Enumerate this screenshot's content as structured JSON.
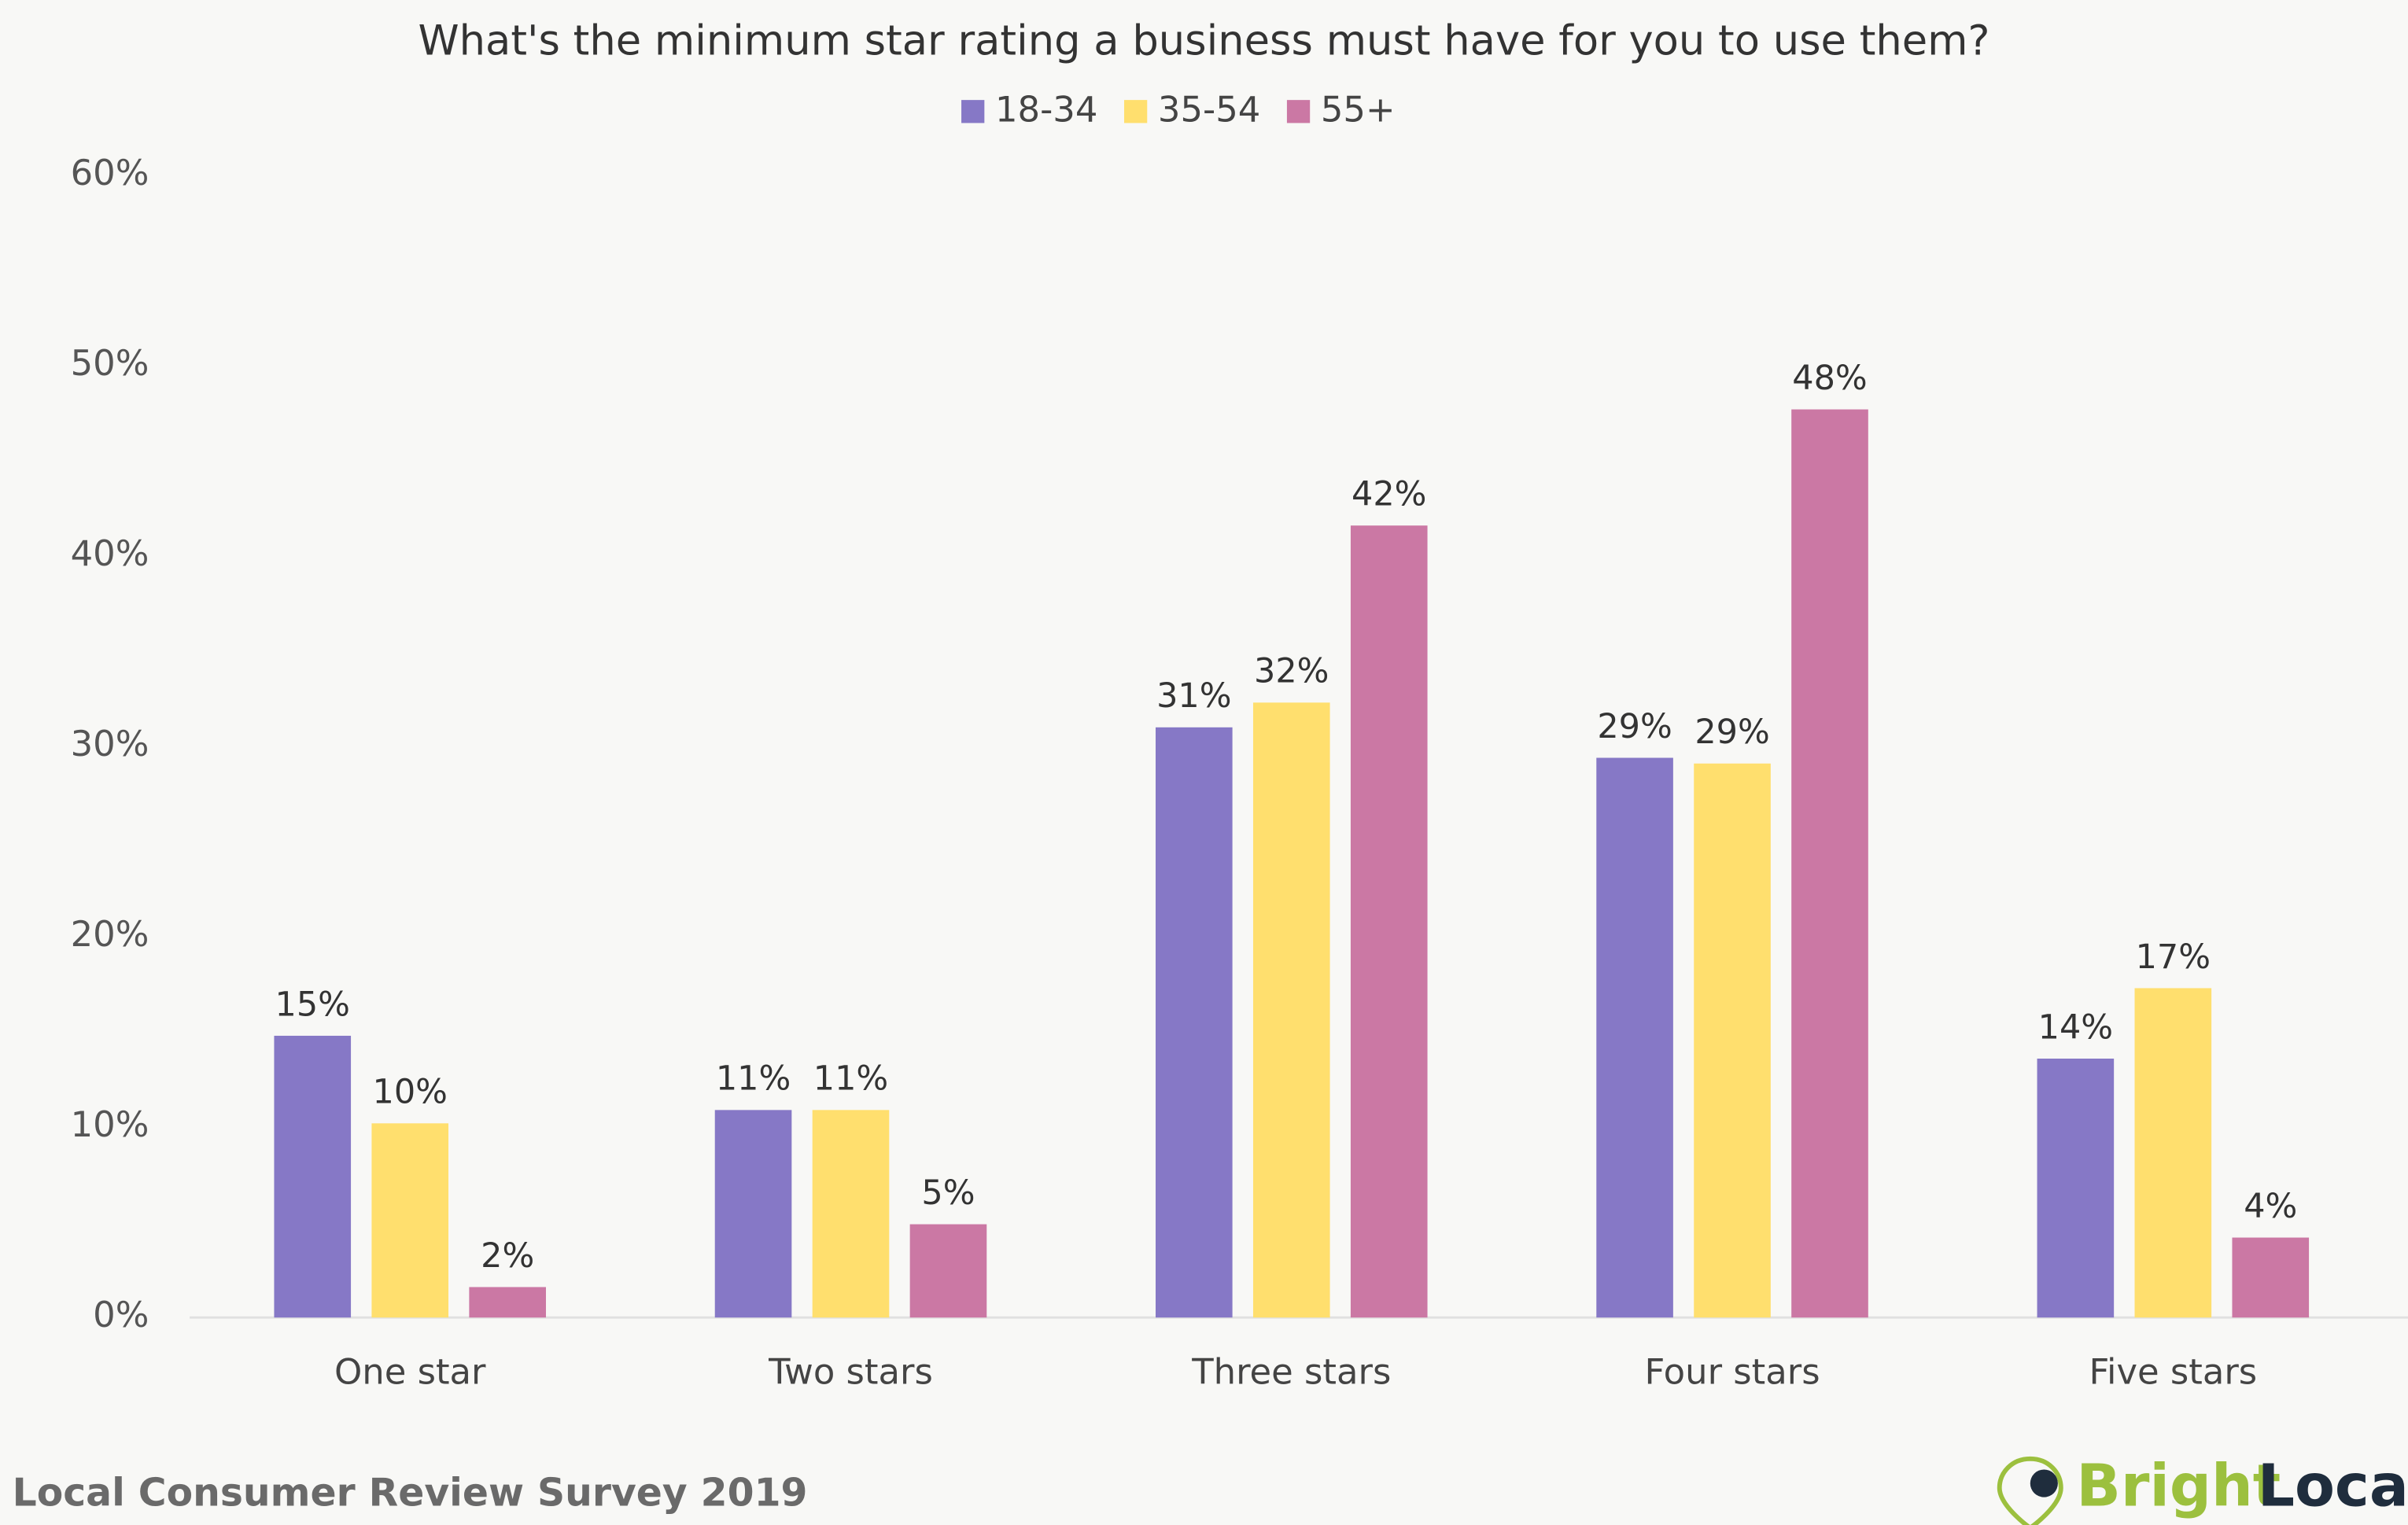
{
  "chart_data": {
    "type": "bar",
    "title": "What's the minimum star rating a business must have for you to use them?",
    "categories": [
      "One star",
      "Two stars",
      "Three stars",
      "Four stars",
      "Five stars"
    ],
    "series": [
      {
        "name": "18-34",
        "color": "#8678c6",
        "values": [
          14.8,
          10.9,
          31.0,
          29.4,
          13.6
        ],
        "value_labels": [
          "15%",
          "11%",
          "31%",
          "29%",
          "14%"
        ]
      },
      {
        "name": "35-54",
        "color": "#ffdf6e",
        "values": [
          10.2,
          10.9,
          32.3,
          29.1,
          17.3
        ],
        "value_labels": [
          "10%",
          "11%",
          "32%",
          "29%",
          "17%"
        ]
      },
      {
        "name": "55+",
        "color": "#cb78a4",
        "values": [
          1.6,
          4.9,
          41.6,
          47.7,
          4.2
        ],
        "value_labels": [
          "2%",
          "5%",
          "42%",
          "48%",
          "4%"
        ]
      }
    ],
    "ylim": [
      0,
      60
    ],
    "yticks": [
      {
        "value": 0,
        "label": "0%"
      },
      {
        "value": 10,
        "label": "10%"
      },
      {
        "value": 20,
        "label": "20%"
      },
      {
        "value": 30,
        "label": "30%"
      },
      {
        "value": 40,
        "label": "40%"
      },
      {
        "value": 50,
        "label": "50%"
      },
      {
        "value": 60,
        "label": "60%"
      }
    ],
    "grid": false,
    "legend": "top",
    "source": "Local Consumer Review Survey 2019",
    "brand": [
      "Bright",
      "Local"
    ]
  }
}
